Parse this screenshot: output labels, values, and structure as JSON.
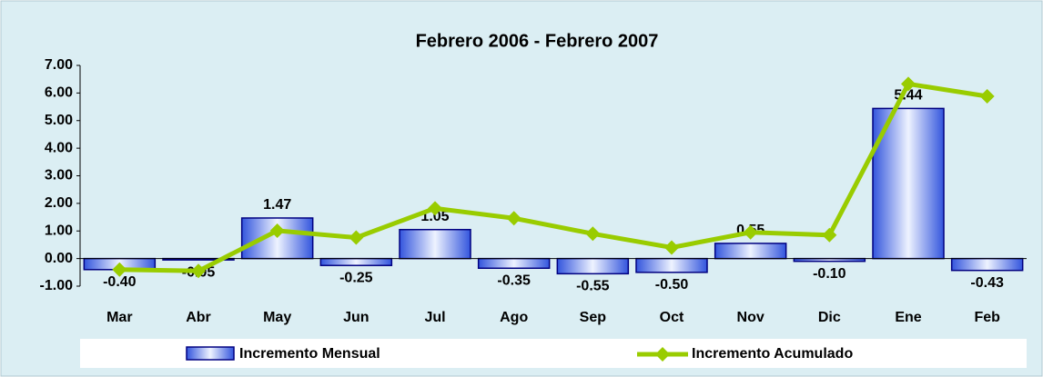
{
  "chart_data": {
    "type": "bar_line",
    "title": "Febrero 2006 - Febrero 2007",
    "categories": [
      "Mar",
      "Abr",
      "May",
      "Jun",
      "Jul",
      "Ago",
      "Sep",
      "Oct",
      "Nov",
      "Dic",
      "Ene",
      "Feb"
    ],
    "series": [
      {
        "name": "Incremento Mensual",
        "type": "bar",
        "color": "#3355dd",
        "values": [
          -0.4,
          -0.05,
          1.47,
          -0.25,
          1.05,
          -0.35,
          -0.55,
          -0.5,
          0.55,
          -0.1,
          5.44,
          -0.43
        ],
        "value_labels": [
          "-0.40",
          "-0.05",
          "1.47",
          "-0.25",
          "1.05",
          "-0.35",
          "-0.55",
          "-0.50",
          "0.55",
          "-0.10",
          "5.44",
          "-0.43"
        ]
      },
      {
        "name": "Incremento Acumulado",
        "type": "line",
        "color": "#99cc00",
        "values": [
          -0.4,
          -0.45,
          1.01,
          0.76,
          1.82,
          1.46,
          0.9,
          0.4,
          0.95,
          0.85,
          6.33,
          5.88
        ]
      }
    ],
    "ylim": [
      -1,
      7
    ],
    "yticks": [
      {
        "value": -1,
        "label": "-1.00"
      },
      {
        "value": 0,
        "label": "0.00"
      },
      {
        "value": 1,
        "label": "1.00"
      },
      {
        "value": 2,
        "label": "2.00"
      },
      {
        "value": 3,
        "label": "3.00"
      },
      {
        "value": 4,
        "label": "4.00"
      },
      {
        "value": 5,
        "label": "5.00"
      },
      {
        "value": 6,
        "label": "6.00"
      },
      {
        "value": 7,
        "label": "7.00"
      }
    ],
    "legend": "bottom"
  }
}
